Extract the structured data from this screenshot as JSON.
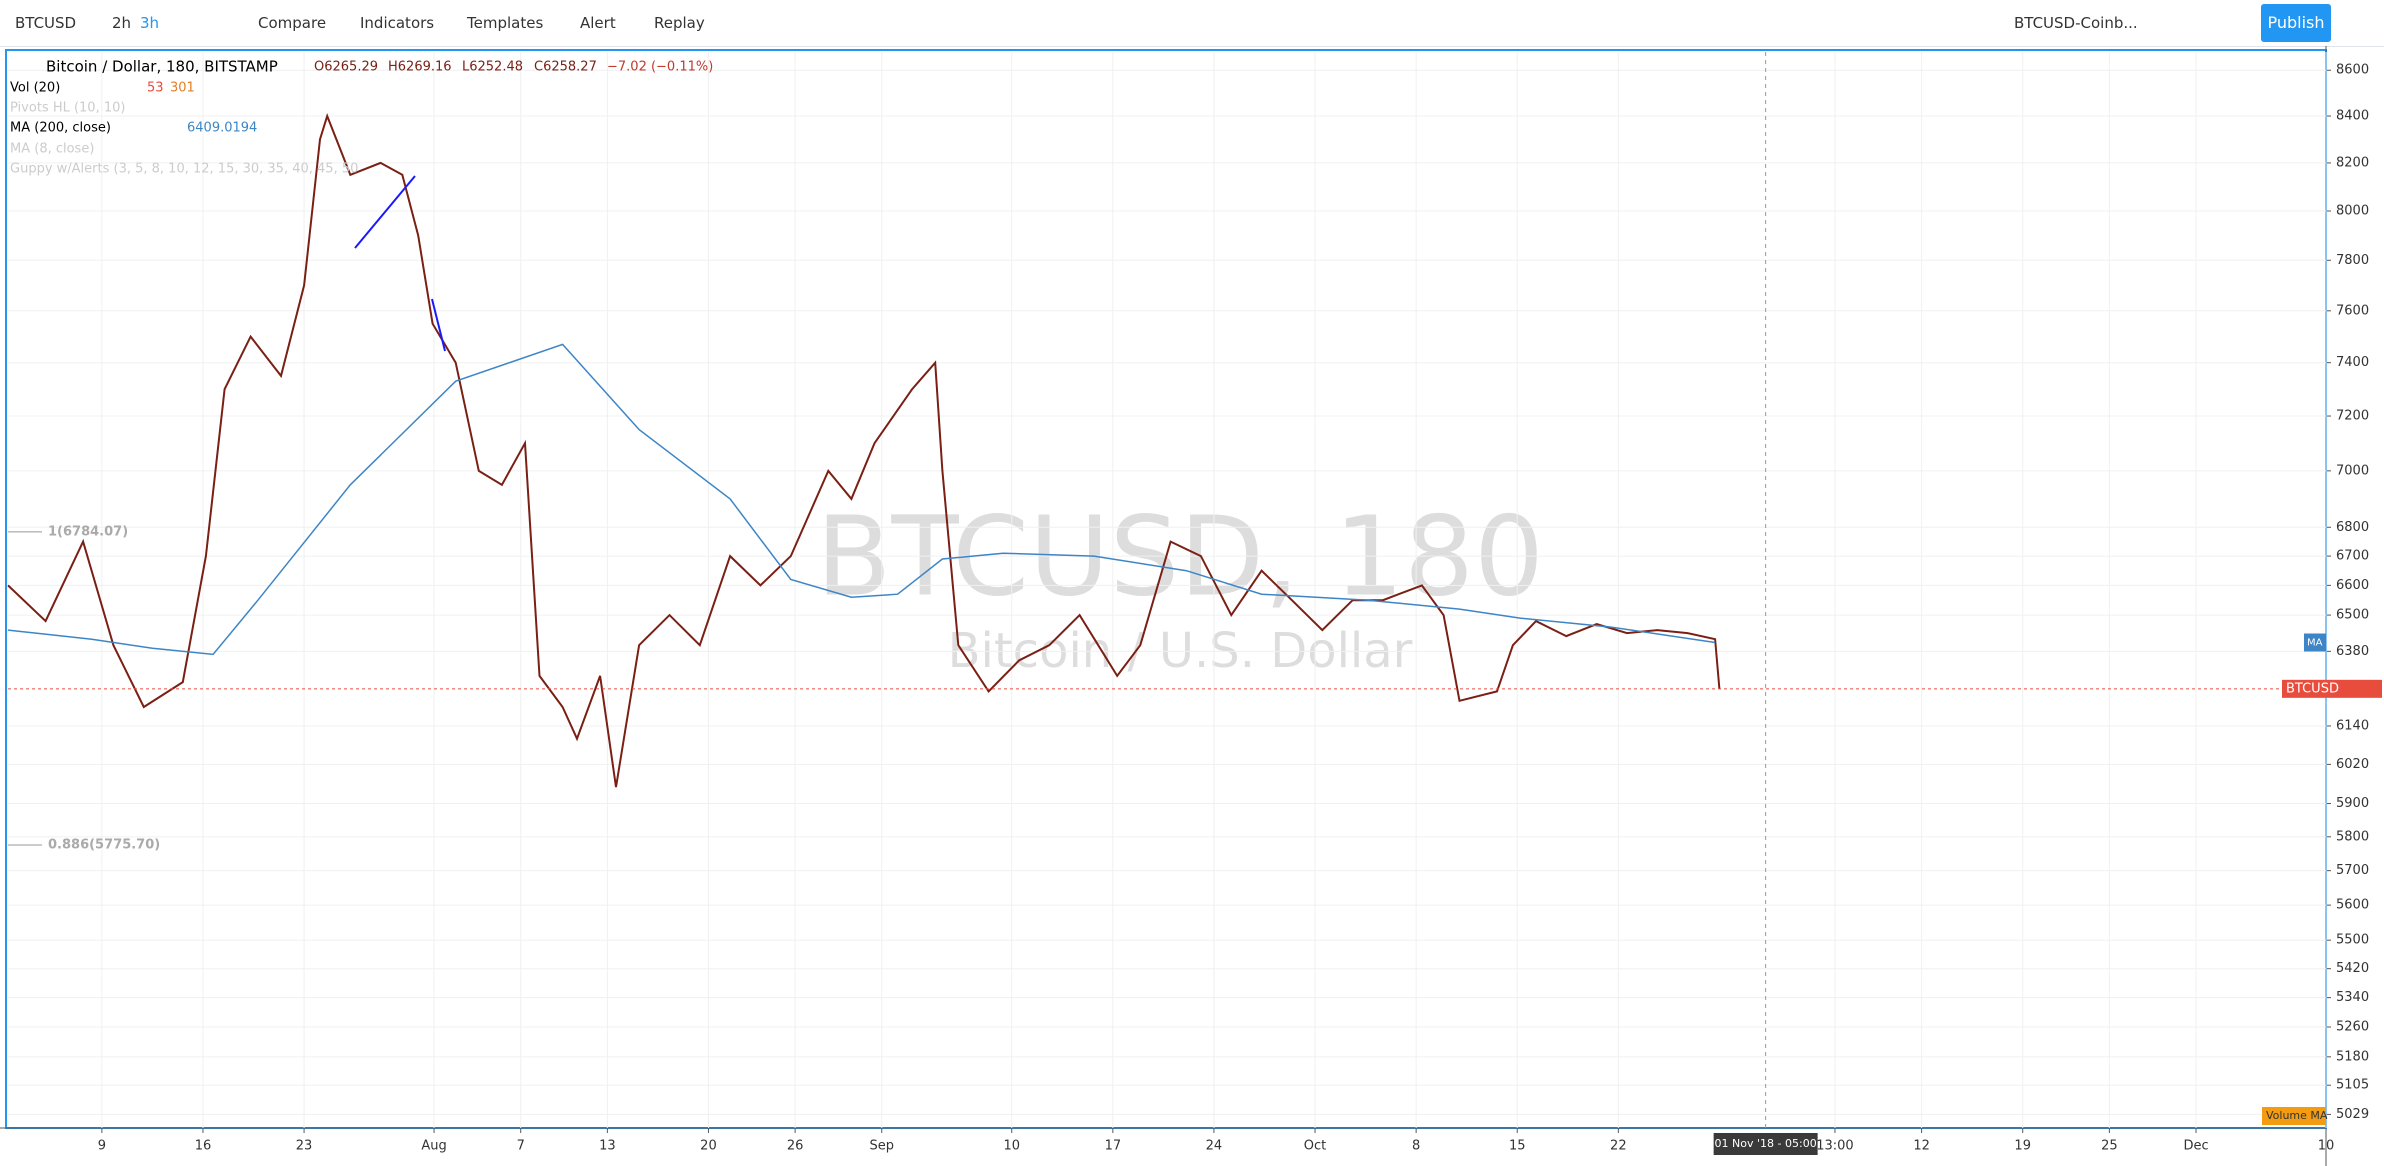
{
  "toolbar": {
    "symbol": "BTCUSD",
    "interval_a": "2h",
    "interval_b": "3h",
    "compare": "Compare",
    "indicators": "Indicators",
    "templates": "Templates",
    "alert": "Alert",
    "replay": "Replay",
    "layout": "BTCUSD-Coinb...",
    "publish": "Publish"
  },
  "legend": {
    "open": "O6265.29",
    "high": "H6269.16",
    "low": "L6252.48",
    "close": "C6258.27",
    "change": "−7.02 (−0.11%)",
    "vol": "Vol (20)",
    "vol_a": 53,
    "vol_b": 301,
    "pivots": "Pivots HL (10, 10)",
    "ma8": "MA (8, close)",
    "guppy": "Guppy w/Alerts (3, 5, 8, 10, 12, 15, 30, 35, 40, 45, 50"
  },
  "watermark": {
    "symbol": "BTCUSD, 180",
    "description": "Bitcoin / U.S. Dollar"
  },
  "chart_data": {
    "type": "line",
    "log": true,
    "xlim": [
      183.5,
      344
    ],
    "ylim": [
      4994,
      8681
    ],
    "xticks": [
      {
        "value": 190,
        "label": "9"
      },
      {
        "value": 197,
        "label": "16"
      },
      {
        "value": 204,
        "label": "23"
      },
      {
        "value": 213,
        "label": "Aug"
      },
      {
        "value": 219,
        "label": "7"
      },
      {
        "value": 225,
        "label": "13"
      },
      {
        "value": 232,
        "label": "20"
      },
      {
        "value": 238,
        "label": "26"
      },
      {
        "value": 244,
        "label": "Sep"
      },
      {
        "value": 253,
        "label": "10"
      },
      {
        "value": 260,
        "label": "17"
      },
      {
        "value": 267,
        "label": "24"
      },
      {
        "value": 274,
        "label": "Oct"
      },
      {
        "value": 281,
        "label": "8"
      },
      {
        "value": 288,
        "label": "15"
      },
      {
        "value": 295,
        "label": "22"
      },
      {
        "value": 310,
        "label": "13:00"
      },
      {
        "value": 316,
        "label": "12"
      },
      {
        "value": 323,
        "label": "19"
      },
      {
        "value": 329,
        "label": "25"
      },
      {
        "value": 335,
        "label": "Dec"
      },
      {
        "value": 344,
        "label": "10"
      }
    ],
    "yticks": [
      8600,
      8400,
      8200,
      8000,
      7800,
      7600,
      7400,
      7200,
      7000,
      6800,
      6700,
      6600,
      6500,
      6380,
      6140,
      6020,
      5900,
      5800,
      5700,
      5600,
      5500,
      5420,
      5340,
      5260,
      5180,
      5105,
      5029
    ],
    "grid": true,
    "series": [
      {
        "name": "Bitcoin / Dollar, 180, BITSTAMP",
        "color": "#7a1f14",
        "x": [
          183.5,
          186.1,
          188.7,
          190.8,
          192.9,
          195.6,
          197.2,
          198.5,
          200.3,
          202.4,
          204.0,
          205.1,
          205.6,
          207.2,
          209.3,
          210.8,
          211.9,
          212.9,
          214.5,
          216.1,
          217.7,
          219.3,
          220.3,
          221.9,
          222.9,
          224.5,
          225.6,
          227.2,
          229.3,
          231.4,
          233.5,
          235.6,
          237.7,
          240.3,
          241.9,
          243.5,
          246.1,
          247.7,
          248.2,
          249.3,
          251.4,
          253.5,
          255.6,
          257.7,
          260.3,
          261.9,
          264.0,
          266.1,
          268.2,
          270.3,
          272.4,
          274.5,
          276.6,
          278.7,
          281.4,
          282.9,
          284.0,
          286.6,
          287.7,
          289.3,
          291.4,
          293.5,
          295.6,
          297.7,
          299.8,
          301.7,
          302.0
        ],
        "values": [
          6600,
          6480,
          6750,
          6400,
          6200,
          6280,
          6700,
          7300,
          7500,
          7350,
          7700,
          8300,
          8400,
          8150,
          8200,
          8150,
          7900,
          7550,
          7400,
          7000,
          6950,
          7100,
          6300,
          6200,
          6100,
          6300,
          5950,
          6400,
          6500,
          6400,
          6700,
          6600,
          6700,
          7000,
          6900,
          7100,
          7300,
          7400,
          7000,
          6400,
          6250,
          6350,
          6400,
          6500,
          6300,
          6400,
          6750,
          6700,
          6500,
          6650,
          6550,
          6450,
          6550,
          6550,
          6600,
          6500,
          6220,
          6250,
          6400,
          6480,
          6430,
          6470,
          6440,
          6450,
          6440,
          6420,
          6258.27
        ]
      },
      {
        "name": "MA (200, close)",
        "color": "#3d85c6",
        "x": [
          183.5,
          189.3,
          193.5,
          197.7,
          200.8,
          207.2,
          214.5,
          221.9,
          227.2,
          233.5,
          237.7,
          241.9,
          245.1,
          248.2,
          252.4,
          258.7,
          265.1,
          270.3,
          277.7,
          284.0,
          288.2,
          294.5,
          301.7
        ],
        "values": [
          6450,
          6420,
          6390,
          6370,
          6550,
          6950,
          7330,
          7470,
          7150,
          6900,
          6620,
          6560,
          6570,
          6690,
          6710,
          6700,
          6650,
          6570,
          6550,
          6520,
          6490,
          6460,
          6409.0194
        ]
      }
    ],
    "levels": [
      {
        "label": "1(6784.07)",
        "value": 6784.07
      },
      {
        "label": "0.886(5775.70)",
        "value": 5775.7
      }
    ],
    "price_tag": {
      "label": "BTCUSD",
      "value": 6258.27
    },
    "ma_tag": "MA",
    "volume_tag": "Volume MA",
    "crosshair": {
      "label": "01 Nov '18 - 05:00",
      "value": 305.2
    }
  }
}
